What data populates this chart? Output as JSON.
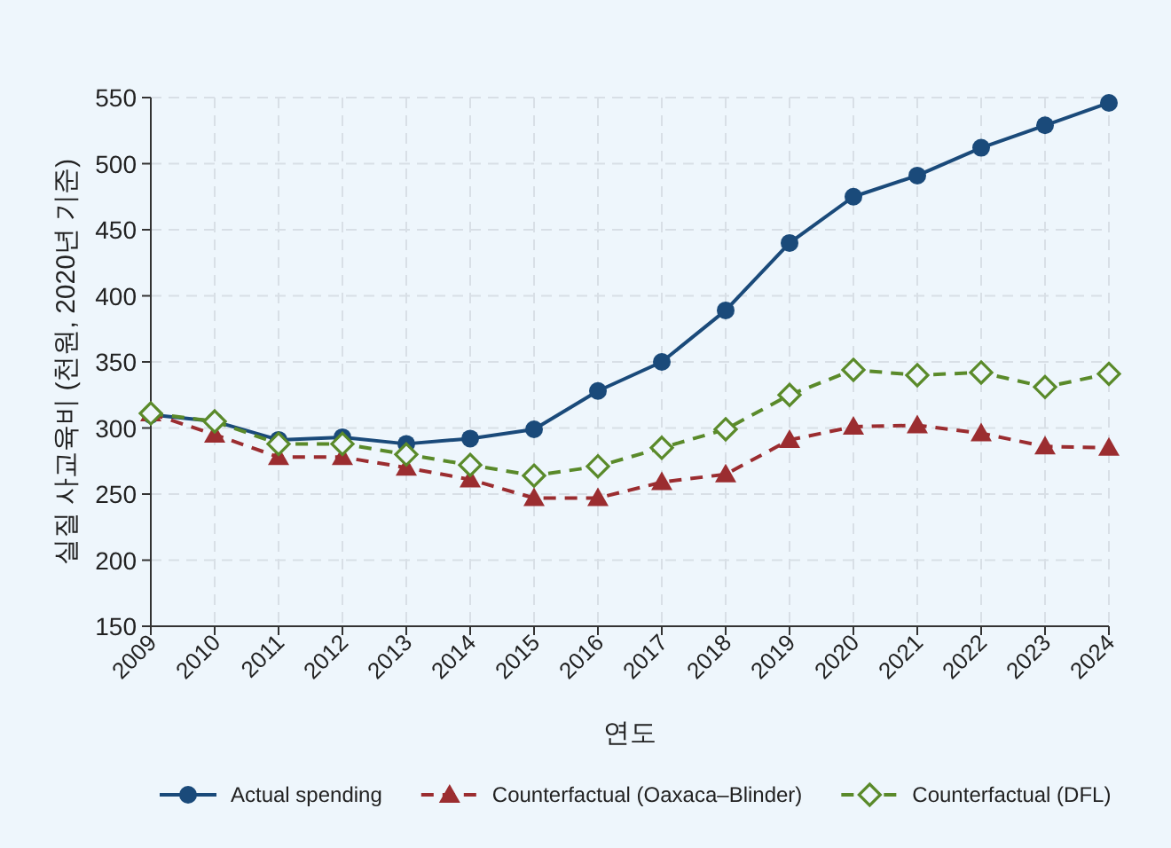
{
  "chart_data": {
    "type": "line",
    "xlabel": "연도",
    "ylabel": "실질 사교육비 (천원, 2020년 기준)",
    "x": [
      2009,
      2010,
      2011,
      2012,
      2013,
      2014,
      2015,
      2016,
      2017,
      2018,
      2019,
      2020,
      2021,
      2022,
      2023,
      2024
    ],
    "xlim": [
      2009,
      2024
    ],
    "xticks": [
      2009,
      2010,
      2011,
      2012,
      2013,
      2014,
      2015,
      2016,
      2017,
      2018,
      2019,
      2020,
      2021,
      2022,
      2023,
      2024
    ],
    "ylim": [
      150,
      550
    ],
    "yticks": [
      150,
      200,
      250,
      300,
      350,
      400,
      450,
      500,
      550
    ],
    "grid": true,
    "legend": "bottom",
    "series": [
      {
        "name": "Actual spending",
        "color": "#1a4a7a",
        "marker": "circle",
        "line_style": "solid",
        "values": [
          310,
          305,
          291,
          293,
          288,
          292,
          299,
          328,
          350,
          389,
          440,
          475,
          491,
          512,
          529,
          546
        ]
      },
      {
        "name": "Counterfactual (Oaxaca–Blinder)",
        "color": "#9b2d30",
        "marker": "triangle",
        "line_style": "dashed",
        "values": [
          311,
          295,
          278,
          278,
          270,
          261,
          247,
          247,
          259,
          265,
          291,
          301,
          302,
          296,
          286,
          285
        ]
      },
      {
        "name": "Counterfactual (DFL)",
        "color": "#5a8a2a",
        "marker": "diamond",
        "line_style": "dashed",
        "values": [
          311,
          305,
          288,
          288,
          280,
          272,
          264,
          271,
          285,
          299,
          325,
          344,
          340,
          342,
          331,
          341
        ]
      }
    ]
  }
}
